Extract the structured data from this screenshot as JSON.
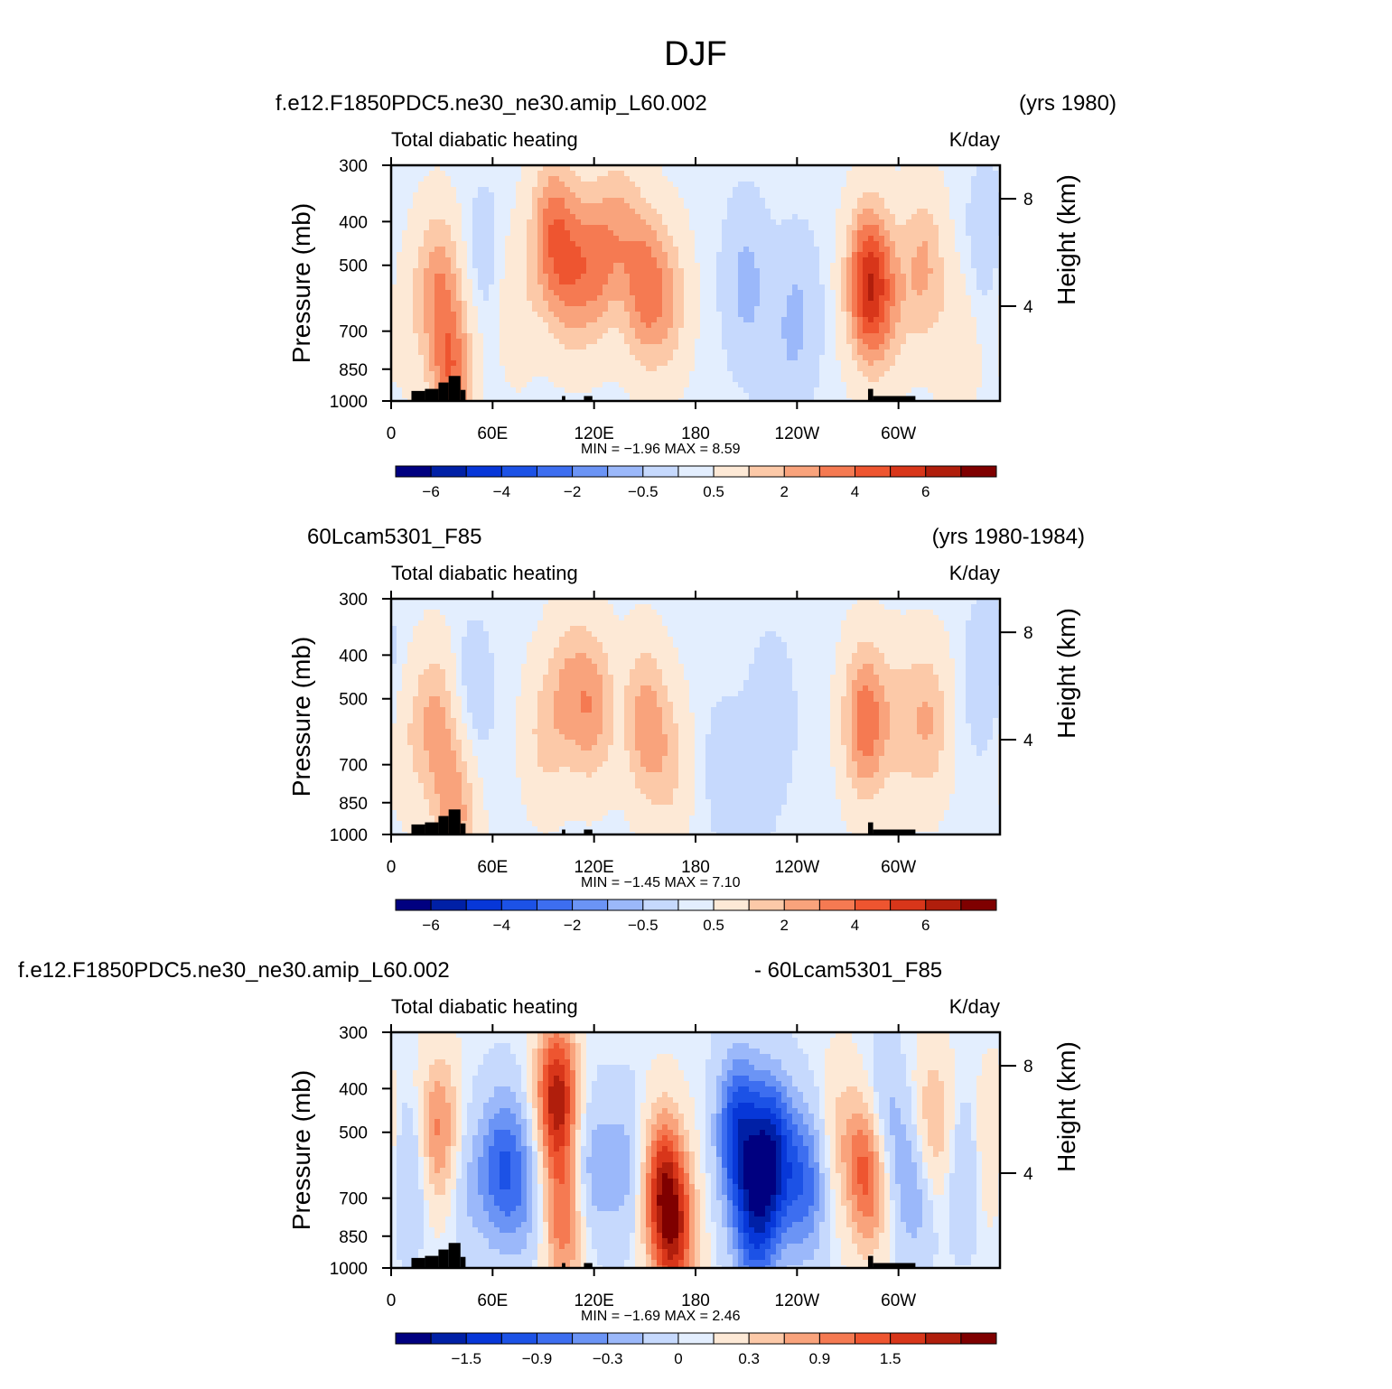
{
  "figure_title": "DJF",
  "chart_data": [
    {
      "type": "heatmap",
      "case_name": "f.e12.F1850PDC5.ne30_ne30.amip_L60.002",
      "years": "(yrs 1980)",
      "field": "Total diabatic heating",
      "units": "K/day",
      "ylabel": "Pressure (mb)",
      "ylabel_right": "Height (km)",
      "y_ticks": [
        "300",
        "400",
        "500",
        "700",
        "850",
        "1000"
      ],
      "y_ticks_right": [
        "8",
        "4"
      ],
      "x_ticks": [
        "0",
        "60E",
        "120E",
        "180",
        "120W",
        "60W"
      ],
      "stats_text": "MIN = −1.96 MAX = 8.59",
      "min": -1.96,
      "max": 8.59,
      "colorbar_ticks": [
        "−6",
        "−4",
        "−2",
        "−0.5",
        "0.5",
        "2",
        "4",
        "6"
      ],
      "scale_max": 8,
      "features": [
        {
          "lon": 28,
          "p": 550,
          "value": 3.0
        },
        {
          "lon": 36,
          "p": 880,
          "value": 4.0
        },
        {
          "lon": 8,
          "p": 620,
          "value": 1.0
        },
        {
          "lon": 55,
          "p": 480,
          "value": -0.8
        },
        {
          "lon": 75,
          "p": 600,
          "value": 1.2
        },
        {
          "lon": 95,
          "p": 420,
          "value": 3.5
        },
        {
          "lon": 105,
          "p": 520,
          "value": 2.6
        },
        {
          "lon": 120,
          "p": 500,
          "value": 3.2
        },
        {
          "lon": 135,
          "p": 420,
          "value": 2.2
        },
        {
          "lon": 150,
          "p": 560,
          "value": 3.6
        },
        {
          "lon": 165,
          "p": 600,
          "value": 2.0
        },
        {
          "lon": 210,
          "p": 550,
          "value": -1.9
        },
        {
          "lon": 240,
          "p": 650,
          "value": -1.7
        },
        {
          "lon": 228,
          "p": 930,
          "value": -0.6
        },
        {
          "lon": 282,
          "p": 550,
          "value": 6.0
        },
        {
          "lon": 295,
          "p": 600,
          "value": 1.8
        },
        {
          "lon": 315,
          "p": 500,
          "value": 2.6
        },
        {
          "lon": 335,
          "p": 750,
          "value": 1.2
        },
        {
          "lon": 352,
          "p": 450,
          "value": -1.0
        }
      ]
    },
    {
      "type": "heatmap",
      "case_name": "60Lcam5301_F85",
      "years": "(yrs 1980-1984)",
      "field": "Total diabatic heating",
      "units": "K/day",
      "ylabel": "Pressure (mb)",
      "ylabel_right": "Height (km)",
      "y_ticks": [
        "300",
        "400",
        "500",
        "700",
        "850",
        "1000"
      ],
      "y_ticks_right": [
        "8",
        "4"
      ],
      "x_ticks": [
        "0",
        "60E",
        "120E",
        "180",
        "120W",
        "60W"
      ],
      "stats_text": "MIN = −1.45 MAX = 7.10",
      "min": -1.45,
      "max": 7.1,
      "colorbar_ticks": [
        "−6",
        "−4",
        "−2",
        "−0.5",
        "0.5",
        "2",
        "4",
        "6"
      ],
      "scale_max": 8,
      "features": [
        {
          "lon": 26,
          "p": 560,
          "value": 2.6
        },
        {
          "lon": 38,
          "p": 880,
          "value": 3.0
        },
        {
          "lon": 8,
          "p": 620,
          "value": 1.0
        },
        {
          "lon": 48,
          "p": 500,
          "value": -1.0
        },
        {
          "lon": 90,
          "p": 600,
          "value": 1.6
        },
        {
          "lon": 105,
          "p": 480,
          "value": 2.2
        },
        {
          "lon": 120,
          "p": 520,
          "value": 2.8
        },
        {
          "lon": 150,
          "p": 560,
          "value": 3.0
        },
        {
          "lon": 165,
          "p": 700,
          "value": 1.6
        },
        {
          "lon": 195,
          "p": 700,
          "value": -0.6
        },
        {
          "lon": 225,
          "p": 560,
          "value": -1.2
        },
        {
          "lon": 210,
          "p": 880,
          "value": -0.8
        },
        {
          "lon": 280,
          "p": 560,
          "value": 4.2
        },
        {
          "lon": 300,
          "p": 560,
          "value": 1.6
        },
        {
          "lon": 318,
          "p": 560,
          "value": 2.4
        },
        {
          "lon": 352,
          "p": 450,
          "value": -1.2
        }
      ]
    },
    {
      "type": "heatmap",
      "case_name": "f.e12.F1850PDC5.ne30_ne30.amip_L60.002",
      "years": "- 60Lcam5301_F85",
      "field": "Total diabatic heating",
      "units": "K/day",
      "ylabel": "Pressure (mb)",
      "ylabel_right": "Height (km)",
      "y_ticks": [
        "300",
        "400",
        "500",
        "700",
        "850",
        "1000"
      ],
      "y_ticks_right": [
        "8",
        "4"
      ],
      "x_ticks": [
        "0",
        "60E",
        "120E",
        "180",
        "120W",
        "60W"
      ],
      "stats_text": "MIN = −1.69 MAX = 2.46",
      "min": -1.69,
      "max": 2.46,
      "colorbar_ticks": [
        "−1.5",
        "−0.9",
        "−0.3",
        "0",
        "0.3",
        "0.9",
        "1.5"
      ],
      "scale_max": 2,
      "features": [
        {
          "lon": 10,
          "p": 600,
          "value": -0.6
        },
        {
          "lon": 28,
          "p": 500,
          "value": 1.0
        },
        {
          "lon": 45,
          "p": 650,
          "value": -0.4
        },
        {
          "lon": 65,
          "p": 600,
          "value": -1.0
        },
        {
          "lon": 80,
          "p": 650,
          "value": -0.6
        },
        {
          "lon": 98,
          "p": 420,
          "value": 1.8
        },
        {
          "lon": 102,
          "p": 800,
          "value": 1.0
        },
        {
          "lon": 118,
          "p": 600,
          "value": -0.6
        },
        {
          "lon": 140,
          "p": 600,
          "value": -0.5
        },
        {
          "lon": 160,
          "p": 650,
          "value": 1.4
        },
        {
          "lon": 168,
          "p": 850,
          "value": 1.3
        },
        {
          "lon": 205,
          "p": 500,
          "value": -1.4
        },
        {
          "lon": 225,
          "p": 560,
          "value": -1.6
        },
        {
          "lon": 215,
          "p": 800,
          "value": -1.2
        },
        {
          "lon": 245,
          "p": 650,
          "value": -1.0
        },
        {
          "lon": 265,
          "p": 500,
          "value": 0.4
        },
        {
          "lon": 283,
          "p": 600,
          "value": 1.6
        },
        {
          "lon": 290,
          "p": 500,
          "value": -0.9
        },
        {
          "lon": 310,
          "p": 650,
          "value": -0.7
        },
        {
          "lon": 320,
          "p": 500,
          "value": 0.8
        },
        {
          "lon": 340,
          "p": 600,
          "value": -0.5
        },
        {
          "lon": 355,
          "p": 550,
          "value": 0.6
        }
      ]
    }
  ],
  "colors": {
    "palette": [
      "#000080",
      "#0020a6",
      "#0737d8",
      "#1c52e6",
      "#3d6ef0",
      "#6b94f5",
      "#9bb8fa",
      "#c6d9fd",
      "#e3eefe",
      "#fde9d6",
      "#fcc9a8",
      "#f9a37c",
      "#f57a52",
      "#ee5530",
      "#d8361a",
      "#b01e0c",
      "#7f0000"
    ],
    "topography": "#000000"
  }
}
